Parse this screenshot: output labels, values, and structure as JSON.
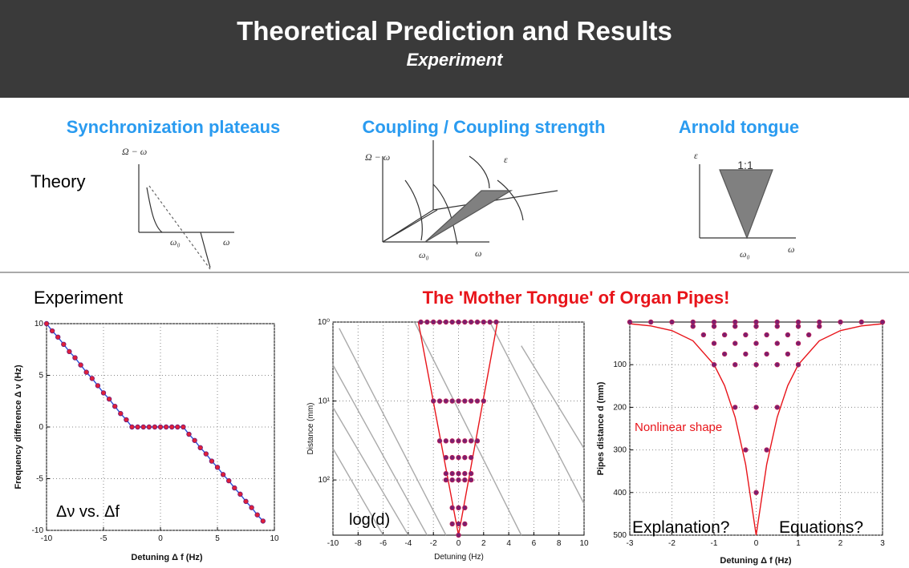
{
  "header": {
    "title": "Theoretical Prediction and Results",
    "subtitle": "Experiment"
  },
  "theory": {
    "row_label": "Theory",
    "panels": [
      {
        "heading": "Synchronization plateaus",
        "labels": [
          "Ω − ω",
          "ω₀",
          "ω"
        ]
      },
      {
        "heading": "Coupling / Coupling strength",
        "labels": [
          "Ω − ω",
          "ε",
          "ω₀",
          "ω"
        ]
      },
      {
        "heading": "Arnold tongue",
        "labels": [
          "ε",
          "1:1",
          "ω₀",
          "ω"
        ]
      }
    ]
  },
  "experiment": {
    "row_label": "Experiment",
    "heading": "The 'Mother Tongue' of Organ Pipes!",
    "plots": [
      {
        "type": "line",
        "xlabel": "Detuning Δ f (Hz)",
        "ylabel": "Frequency difference Δ ν (Hz)",
        "annotations": [
          "Δν vs. Δf"
        ],
        "xlim": [
          -10,
          10
        ],
        "ylim": [
          -10,
          10
        ],
        "xticks": [
          -10,
          -5,
          0,
          5,
          10
        ],
        "yticks": [
          10,
          5,
          0,
          -5,
          -10
        ],
        "grid": true,
        "series": [
          {
            "style": "line+markers",
            "color": "#2b4fd8",
            "marker_color": "#e0203a",
            "edge_color": "#6a1a7a",
            "x": [
              -10,
              -9.5,
              -9,
              -8.5,
              -8,
              -7.5,
              -7,
              -6.5,
              -6,
              -5.5,
              -5,
              -4.5,
              -4,
              -3.5,
              -3,
              -2.5,
              -2,
              -1.5,
              -1,
              -0.5,
              0,
              0.5,
              1,
              1.5,
              2,
              2.5,
              3,
              3.5,
              4,
              4.5,
              5,
              5.5,
              6,
              6.5,
              7,
              7.5,
              8,
              8.5,
              9
            ],
            "y": [
              10,
              9.3,
              8.7,
              8,
              7.3,
              6.7,
              6,
              5.3,
              4.7,
              4,
              3.3,
              2.7,
              2,
              1.3,
              0.7,
              0,
              0,
              0,
              0,
              0,
              0,
              0,
              0,
              0,
              0,
              -0.7,
              -1.3,
              -2,
              -2.6,
              -3.3,
              -3.9,
              -4.6,
              -5.2,
              -5.9,
              -6.5,
              -7.2,
              -7.8,
              -8.5,
              -9.1
            ]
          }
        ]
      },
      {
        "type": "scatter",
        "xlabel": "Detuning (Hz)",
        "ylabel": "Distance (mm)",
        "annotations": [
          "log(d)"
        ],
        "xlim": [
          -10,
          10
        ],
        "ylim": [
          1,
          500
        ],
        "log_y": true,
        "y_inverted": true,
        "grid": true,
        "xticks": [
          -10,
          -8,
          -6,
          -4,
          -2,
          0,
          2,
          4,
          6,
          8,
          10
        ],
        "yticks": [
          {
            "value": 1,
            "label": "10⁰"
          },
          {
            "value": 10,
            "label": "10¹"
          },
          {
            "value": 100,
            "label": "10²"
          }
        ],
        "series": [
          {
            "style": "line",
            "color": "#aaaaaa",
            "x": [
              -9.5,
              -1
            ],
            "y": [
              1.2,
              500
            ]
          },
          {
            "style": "line",
            "color": "#aaaaaa",
            "x": [
              -10,
              -2.5
            ],
            "y": [
              3.5,
              500
            ]
          },
          {
            "style": "line",
            "color": "#aaaaaa",
            "x": [
              -10,
              -4
            ],
            "y": [
              12,
              500
            ]
          },
          {
            "style": "line",
            "color": "#aaaaaa",
            "x": [
              -10,
              -6
            ],
            "y": [
              40,
              500
            ]
          },
          {
            "style": "line",
            "color": "#aaaaaa",
            "x": [
              -3.5,
              5
            ],
            "y": [
              1,
              500
            ]
          },
          {
            "style": "line",
            "color": "#aaaaaa",
            "x": [
              2.5,
              10
            ],
            "y": [
              1,
              200
            ]
          },
          {
            "style": "line",
            "color": "#aaaaaa",
            "x": [
              5,
              10
            ],
            "y": [
              2,
              40
            ]
          },
          {
            "style": "line",
            "color": "#e8141a",
            "x": [
              -3.2,
              0,
              3.1
            ],
            "y": [
              1,
              500,
              1
            ]
          },
          {
            "style": "scatter",
            "marker_color": "#7a1f6e",
            "edge_color": "#c0205a",
            "x": [
              -3,
              -2.5,
              -2,
              -1.5,
              -1,
              -0.5,
              0,
              0.5,
              1,
              1.5,
              2,
              2.5,
              3,
              -2,
              -1.5,
              -1,
              -0.5,
              0,
              0.5,
              1,
              1.5,
              2,
              -1.5,
              -1,
              -0.5,
              0,
              0.5,
              1,
              1.5,
              -1,
              -0.5,
              0,
              0.5,
              1,
              -1,
              -0.5,
              0,
              0.5,
              1,
              -1,
              -0.5,
              0,
              0.5,
              1,
              -0.5,
              0,
              0.5,
              -0.5,
              0,
              0.5,
              0
            ],
            "y": [
              1,
              1,
              1,
              1,
              1,
              1,
              1,
              1,
              1,
              1,
              1,
              1,
              1,
              10,
              10,
              10,
              10,
              10,
              10,
              10,
              10,
              10,
              32,
              32,
              32,
              32,
              32,
              32,
              32,
              52,
              52,
              52,
              52,
              52,
              83,
              83,
              83,
              83,
              83,
              100,
              100,
              100,
              100,
              100,
              225,
              225,
              225,
              360,
              360,
              360,
              500
            ]
          }
        ]
      },
      {
        "type": "scatter",
        "xlabel": "Detuning Δ f (Hz)",
        "ylabel": "Pipes distance d (mm)",
        "annotations": [
          "Nonlinear shape",
          "Explanation?",
          "Equations?"
        ],
        "xlim": [
          -3,
          3
        ],
        "ylim": [
          0,
          500
        ],
        "y_inverted": true,
        "grid": true,
        "xticks": [
          -3,
          -2,
          -1,
          0,
          1,
          2,
          3
        ],
        "yticks": [
          100,
          200,
          300,
          400,
          500
        ],
        "series": [
          {
            "style": "line",
            "color": "#e8141a",
            "x": [
              -3,
              -2.5,
              -2,
              -1.5,
              -1,
              -0.75,
              -0.5,
              -0.25,
              0,
              0.25,
              0.5,
              0.75,
              1,
              1.5,
              2,
              2.5,
              3
            ],
            "y": [
              4,
              9,
              20,
              44,
              100,
              149,
              223,
              334,
              500,
              334,
              223,
              149,
              100,
              44,
              20,
              9,
              4
            ]
          },
          {
            "style": "scatter",
            "marker_color": "#7a1f6e",
            "edge_color": "#c0205a",
            "x": [
              -3,
              -2.5,
              -2,
              -1.5,
              -1,
              -0.5,
              0,
              0.5,
              1,
              1.5,
              2,
              2.5,
              3,
              -1.5,
              -1,
              -0.5,
              0,
              0.5,
              1,
              1.5,
              -1.25,
              -0.75,
              -0.25,
              0.25,
              0.75,
              1.25,
              -1,
              -0.5,
              0,
              0.5,
              1,
              -0.75,
              -0.25,
              0.25,
              0.75,
              -1,
              -0.5,
              0,
              0.5,
              1,
              -0.5,
              0,
              0.5,
              -0.25,
              0.25,
              0
            ],
            "y": [
              0,
              0,
              0,
              0,
              0,
              0,
              0,
              0,
              0,
              0,
              0,
              0,
              0,
              10,
              10,
              10,
              10,
              10,
              10,
              10,
              30,
              30,
              30,
              30,
              30,
              30,
              50,
              50,
              50,
              50,
              50,
              75,
              75,
              75,
              75,
              100,
              100,
              100,
              100,
              100,
              200,
              200,
              200,
              300,
              300,
              400
            ]
          }
        ]
      }
    ]
  }
}
